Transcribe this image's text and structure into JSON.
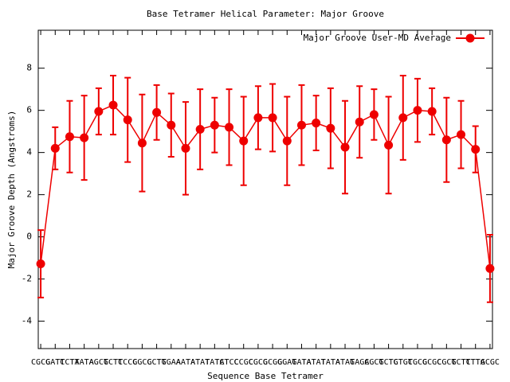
{
  "chart_data": {
    "type": "line",
    "title": "Base Tetramer Helical Parameter: Major Groove",
    "x_label": "Sequence Base Tetramer",
    "y_label": "Major Groove Depth (Angstroms)",
    "categories": [
      "CGCG",
      "GATC",
      "TCTA",
      "TATA",
      "AGCT",
      "GCTC",
      "TCCG",
      "CGCC",
      "GCTG",
      "TGAA",
      "AATA",
      "ATAT",
      "TATC",
      "ATCC",
      "CCGC",
      "CGCG",
      "GCGG",
      "GGAT",
      "GATA",
      "ATAT",
      "TATA",
      "ATAG",
      "TAGC",
      "AGCT",
      "GCTG",
      "CTGC",
      "TGCG",
      "GCGC",
      "CGCT",
      "GCTT",
      "CTTA",
      "GCGC"
    ],
    "series": [
      {
        "name": "Major Groove User-MD Average",
        "color": "#ee0000",
        "values": [
          -1.28,
          4.2,
          4.75,
          4.7,
          5.95,
          6.25,
          5.55,
          4.45,
          5.9,
          5.3,
          4.2,
          5.1,
          5.3,
          5.2,
          4.55,
          5.65,
          5.65,
          4.55,
          5.3,
          5.4,
          5.15,
          4.25,
          5.45,
          5.8,
          4.35,
          5.65,
          6.0,
          5.95,
          4.6,
          4.85,
          4.15,
          -1.5
        ],
        "errors": [
          1.6,
          1.0,
          1.7,
          2.0,
          1.1,
          1.4,
          2.0,
          2.3,
          1.3,
          1.5,
          2.2,
          1.9,
          1.3,
          1.8,
          2.1,
          1.5,
          1.6,
          2.1,
          1.9,
          1.3,
          1.9,
          2.2,
          1.7,
          1.2,
          2.3,
          2.0,
          1.5,
          1.1,
          2.0,
          1.6,
          1.1,
          1.6
        ]
      }
    ],
    "ylim": [
      -5.3,
      9.8
    ],
    "yticks": [
      -4,
      -2,
      0,
      2,
      4,
      6,
      8
    ],
    "legend": "top-right",
    "grid": false
  }
}
